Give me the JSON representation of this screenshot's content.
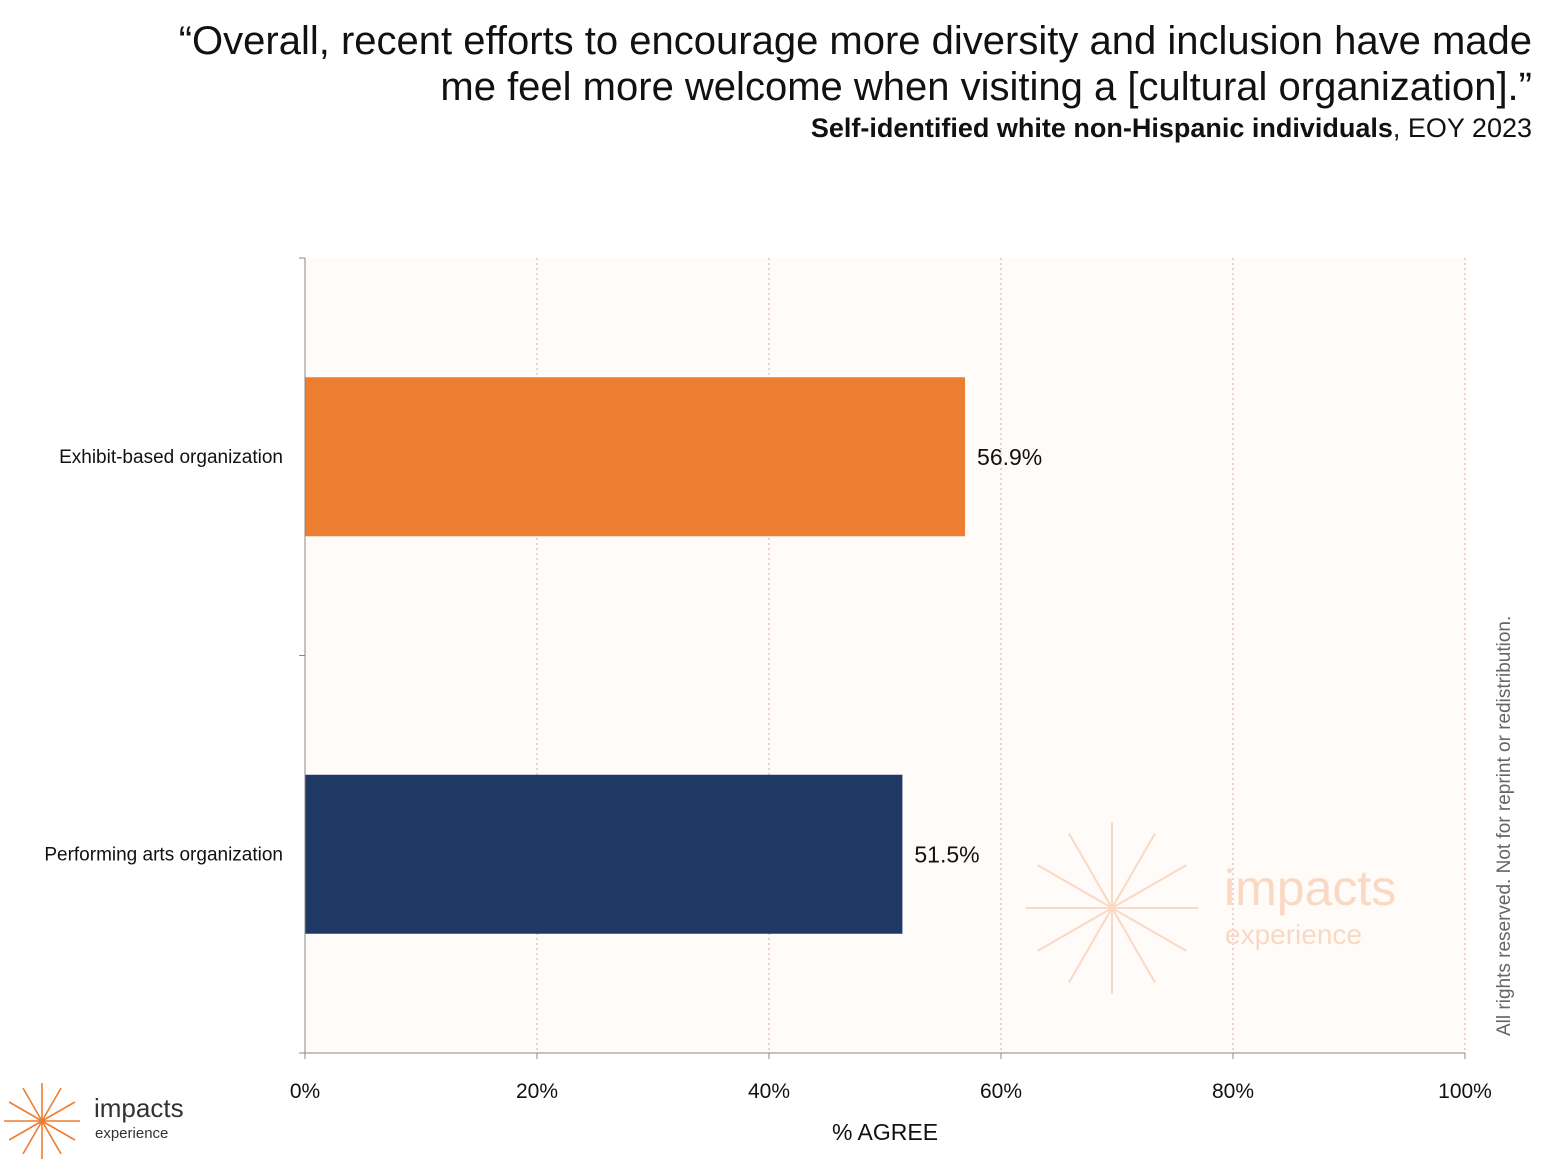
{
  "title": "“Overall, recent efforts to encourage more diversity and inclusion have made me feel more welcome when visiting a [cultural organization].”",
  "subtitle_bold": "Self-identified white non-Hispanic individuals",
  "subtitle_rest": ", EOY 2023",
  "side_note": "All rights reserved. Not for reprint or redistribution.",
  "watermark": {
    "word": "impacts",
    "sub": "experience"
  },
  "logo": {
    "word": "impacts",
    "sub": "experience"
  },
  "colors": {
    "accent_orange": "#ED7D31",
    "navy": "#203864",
    "plot_bg": "#FEFBF9",
    "grid": "#D9A9A9"
  },
  "chart_data": {
    "type": "bar",
    "orientation": "horizontal",
    "categories": [
      "Exhibit-based organization",
      "Performing arts organization"
    ],
    "values": [
      56.9,
      51.5
    ],
    "data_labels": [
      "56.9%",
      "51.5%"
    ],
    "bar_colors": [
      "#ED7D31",
      "#203864"
    ],
    "xlabel": "% AGREE",
    "xlim": [
      0,
      100
    ],
    "x_ticks": [
      "0%",
      "20%",
      "40%",
      "60%",
      "80%",
      "100%"
    ],
    "grid": true
  }
}
